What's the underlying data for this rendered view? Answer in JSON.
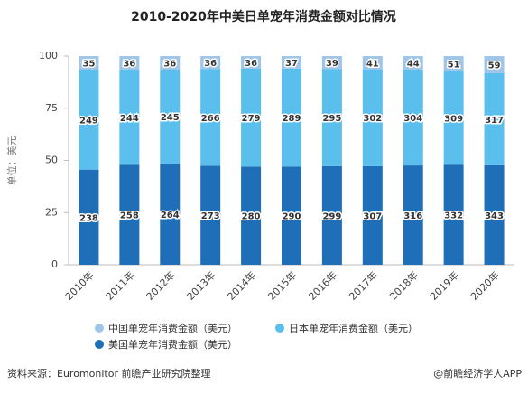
{
  "chart_data": {
    "type": "bar",
    "stacked": "percent",
    "title": "2010-2020年中美日单宠年消费金额对比情况",
    "y_label": "单位：美元",
    "categories": [
      "2010年",
      "2011年",
      "2012年",
      "2013年",
      "2014年",
      "2015年",
      "2016年",
      "2017年",
      "2018年",
      "2019年",
      "2020年"
    ],
    "series": [
      {
        "name": "中国单宠年消费金额（美元）",
        "color": "#9fc5e8",
        "values": [
          35,
          36,
          36,
          36,
          36,
          37,
          39,
          41,
          44,
          51,
          59
        ]
      },
      {
        "name": "日本单宠年消费金额（美元）",
        "color": "#5bbfee",
        "values": [
          249,
          244,
          245,
          266,
          279,
          289,
          295,
          302,
          304,
          309,
          317
        ]
      },
      {
        "name": "美国单宠年消费金额（美元）",
        "color": "#1f6fb8",
        "values": [
          238,
          258,
          264,
          273,
          280,
          290,
          299,
          307,
          316,
          332,
          343
        ]
      }
    ],
    "ylim": [
      0,
      100
    ],
    "yticks": [
      0,
      25,
      50,
      75,
      100
    ],
    "grid": false
  },
  "footer": {
    "source": "资料来源：Euromonitor 前瞻产业研究院整理",
    "credit": "@前瞻经济学人APP"
  }
}
